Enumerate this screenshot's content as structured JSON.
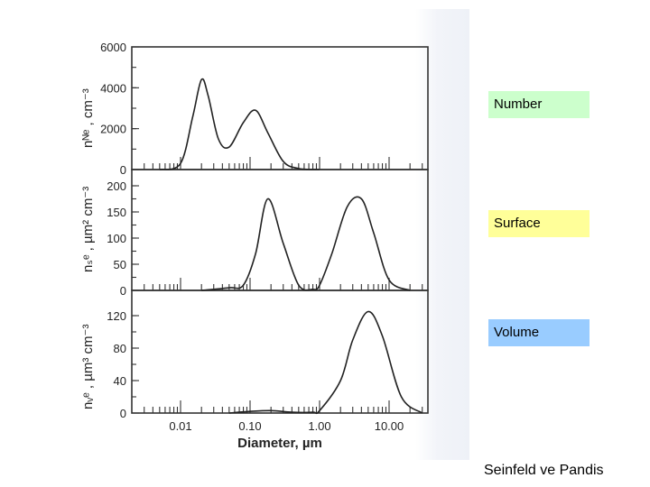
{
  "labels": {
    "number": "Number",
    "surface": "Surface",
    "volume": "Volume"
  },
  "credit": "Seinfeld ve Pandis",
  "colors": {
    "number_box": "#ccffcc",
    "surface_box": "#ffff99",
    "volume_box": "#99ccff",
    "curve": "#222222"
  },
  "axes": {
    "xlabel": "Diameter, µm",
    "xticks": [
      "0.01",
      "0.10",
      "1.00",
      "10.00"
    ],
    "number": {
      "ylabel": "nᴺᵉ , cm⁻³",
      "yticks": [
        "0",
        "2000",
        "4000",
        "6000"
      ]
    },
    "surface": {
      "ylabel": "nₛᵉ , µm² cm⁻³",
      "yticks": [
        "0",
        "50",
        "100",
        "150",
        "200"
      ]
    },
    "volume": {
      "ylabel": "nᵥᵉ , µm³ cm⁻³",
      "yticks": [
        "0",
        "40",
        "80",
        "120"
      ]
    }
  },
  "chart_data": [
    {
      "type": "line",
      "title": "Number",
      "xlabel": "Diameter, µm",
      "ylabel": "n_N^e, cm^-3",
      "xscale": "log",
      "xlim": [
        0.0018,
        40
      ],
      "ylim": [
        0,
        6000
      ],
      "x": [
        0.005,
        0.01,
        0.015,
        0.02,
        0.025,
        0.035,
        0.05,
        0.08,
        0.12,
        0.18,
        0.3,
        0.5,
        1.0
      ],
      "y": [
        0,
        300,
        2600,
        4400,
        3600,
        1500,
        1100,
        2300,
        2900,
        1800,
        400,
        50,
        0
      ]
    },
    {
      "type": "line",
      "title": "Surface",
      "xlabel": "Diameter, µm",
      "ylabel": "n_S^e, µm^2 cm^-3",
      "xscale": "log",
      "xlim": [
        0.0018,
        40
      ],
      "ylim": [
        0,
        200
      ],
      "x": [
        0.02,
        0.05,
        0.08,
        0.12,
        0.18,
        0.3,
        0.5,
        0.8,
        1.0,
        1.5,
        2.5,
        4.0,
        6.0,
        10.0,
        20.0
      ],
      "y": [
        0,
        5,
        10,
        70,
        175,
        90,
        10,
        2,
        10,
        70,
        160,
        175,
        110,
        20,
        0
      ]
    },
    {
      "type": "line",
      "title": "Volume",
      "xlabel": "Diameter, µm",
      "ylabel": "n_V^e, µm^3 cm^-3",
      "xscale": "log",
      "xlim": [
        0.0018,
        40
      ],
      "ylim": [
        0,
        120
      ],
      "x": [
        0.05,
        0.1,
        0.2,
        0.4,
        0.8,
        1.0,
        2.0,
        3.0,
        5.0,
        8.0,
        15.0,
        30.0
      ],
      "y": [
        0,
        2,
        3,
        1,
        1,
        3,
        40,
        90,
        125,
        95,
        20,
        0
      ]
    }
  ]
}
